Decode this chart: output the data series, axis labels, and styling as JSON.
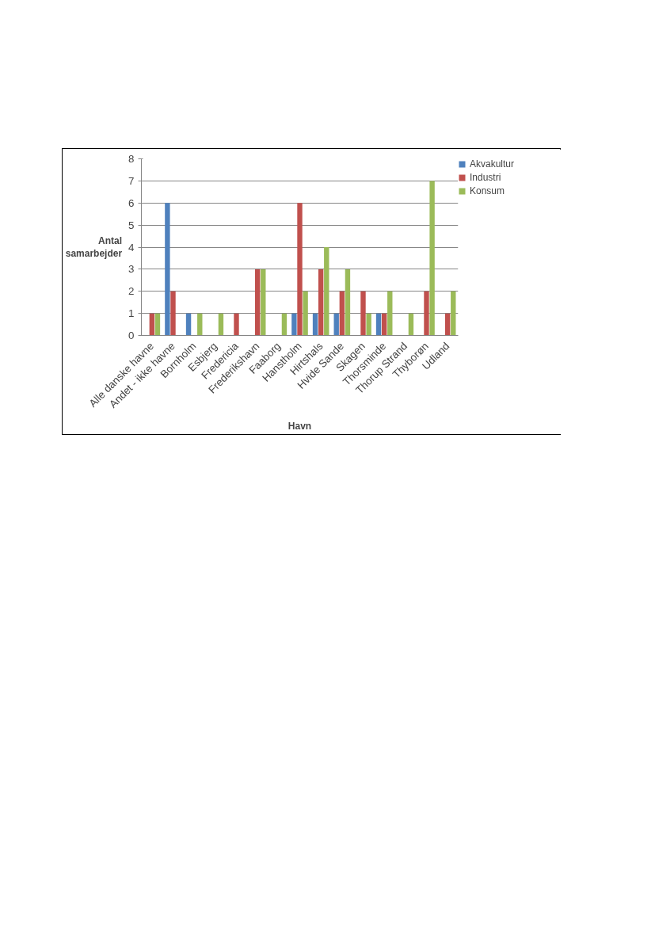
{
  "chart_data": {
    "type": "bar",
    "xlabel": "Havn",
    "ylabel": "Antal samarbejder",
    "categories": [
      "Alle danske havne",
      "Andet - ikke havne",
      "Bornholm",
      "Esbjerg",
      "Fredericia",
      "Frederikshavn",
      "Faaborg",
      "Hanstholm",
      "Hirtshals",
      "Hvide Sande",
      "Skagen",
      "Thorsminde",
      "Thorup Strand",
      "Thyborøn",
      "Udland"
    ],
    "series": [
      {
        "name": "Akvakultur",
        "color": "#4f81bd",
        "values": [
          null,
          6,
          1,
          null,
          null,
          null,
          null,
          1,
          1,
          1,
          null,
          1,
          null,
          null,
          null
        ]
      },
      {
        "name": "Industri",
        "color": "#c0504d",
        "values": [
          1,
          2,
          null,
          null,
          1,
          3,
          null,
          6,
          3,
          2,
          2,
          1,
          null,
          2,
          1
        ]
      },
      {
        "name": "Konsum",
        "color": "#9bbb59",
        "values": [
          1,
          null,
          1,
          1,
          null,
          3,
          1,
          2,
          4,
          3,
          1,
          2,
          1,
          7,
          2
        ]
      }
    ],
    "ylim": [
      0,
      8
    ],
    "yticks": [
      0,
      1,
      2,
      3,
      4,
      5,
      6,
      7,
      8
    ],
    "grid": "y",
    "legend": "right"
  }
}
